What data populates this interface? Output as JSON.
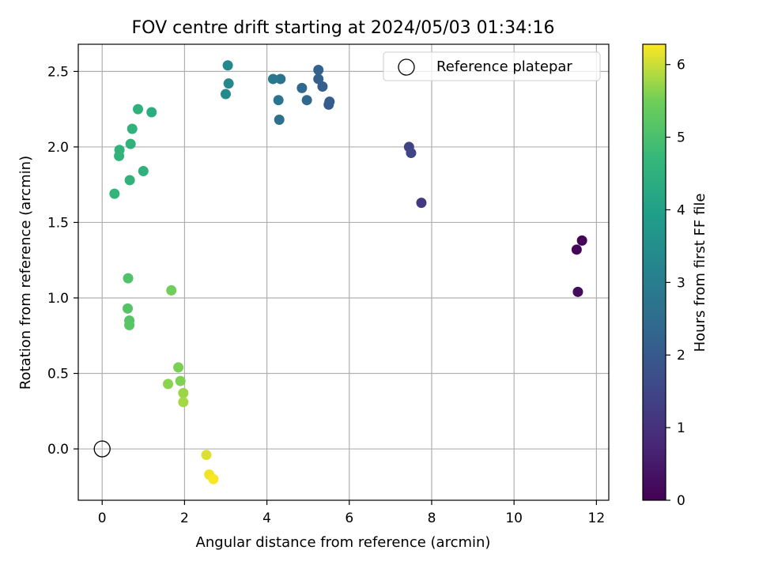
{
  "chart_data": {
    "type": "scatter",
    "title": "FOV centre drift starting at 2024/05/03 01:34:16",
    "xlabel": "Angular distance from reference (arcmin)",
    "ylabel": "Rotation from reference (arcmin)",
    "xlim": [
      -0.58,
      12.3
    ],
    "ylim": [
      -0.34,
      2.68
    ],
    "xticks": [
      0,
      2,
      4,
      6,
      8,
      10,
      12
    ],
    "yticks": [
      0.0,
      0.5,
      1.0,
      1.5,
      2.0,
      2.5
    ],
    "xtick_labels": [
      "0",
      "2",
      "4",
      "6",
      "8",
      "10",
      "12"
    ],
    "ytick_labels": [
      "0.0",
      "0.5",
      "1.0",
      "1.5",
      "2.0",
      "2.5"
    ],
    "grid": true,
    "legend": {
      "position": "top-right",
      "entries": [
        {
          "label": "Reference platepar",
          "marker": "open-circle",
          "color": "#000000"
        }
      ]
    },
    "reference_point": {
      "x": 0,
      "y": 0
    },
    "colorbar": {
      "label": "Hours from first FF file",
      "colormap": "viridis",
      "range": [
        0,
        6.28
      ],
      "ticks": [
        0,
        1,
        2,
        3,
        4,
        5,
        6
      ],
      "tick_labels": [
        "0",
        "1",
        "2",
        "3",
        "4",
        "5",
        "6"
      ]
    },
    "points": [
      {
        "x": 11.55,
        "y": 1.04,
        "c": 0.2
      },
      {
        "x": 11.52,
        "y": 1.32,
        "c": 0.1
      },
      {
        "x": 11.65,
        "y": 1.38,
        "c": 0.05
      },
      {
        "x": 7.75,
        "y": 1.63,
        "c": 1.2
      },
      {
        "x": 7.45,
        "y": 2.0,
        "c": 1.4
      },
      {
        "x": 7.5,
        "y": 1.96,
        "c": 1.5
      },
      {
        "x": 5.5,
        "y": 2.28,
        "c": 2.0
      },
      {
        "x": 5.52,
        "y": 2.3,
        "c": 2.05
      },
      {
        "x": 5.35,
        "y": 2.4,
        "c": 2.1
      },
      {
        "x": 5.25,
        "y": 2.45,
        "c": 2.15
      },
      {
        "x": 5.25,
        "y": 2.51,
        "c": 2.2
      },
      {
        "x": 4.97,
        "y": 2.31,
        "c": 2.35
      },
      {
        "x": 4.85,
        "y": 2.39,
        "c": 2.4
      },
      {
        "x": 4.3,
        "y": 2.18,
        "c": 2.6
      },
      {
        "x": 4.28,
        "y": 2.31,
        "c": 2.75
      },
      {
        "x": 4.33,
        "y": 2.45,
        "c": 2.7
      },
      {
        "x": 4.15,
        "y": 2.45,
        "c": 2.85
      },
      {
        "x": 3.07,
        "y": 2.42,
        "c": 3.3
      },
      {
        "x": 3.05,
        "y": 2.54,
        "c": 3.35
      },
      {
        "x": 3.0,
        "y": 2.35,
        "c": 3.4
      },
      {
        "x": 1.2,
        "y": 2.23,
        "c": 4.4
      },
      {
        "x": 0.87,
        "y": 2.25,
        "c": 4.5
      },
      {
        "x": 0.73,
        "y": 2.12,
        "c": 4.55
      },
      {
        "x": 0.69,
        "y": 2.02,
        "c": 4.55
      },
      {
        "x": 0.42,
        "y": 1.98,
        "c": 4.6
      },
      {
        "x": 0.41,
        "y": 1.94,
        "c": 4.6
      },
      {
        "x": 1.0,
        "y": 1.84,
        "c": 4.5
      },
      {
        "x": 0.67,
        "y": 1.78,
        "c": 4.55
      },
      {
        "x": 0.3,
        "y": 1.69,
        "c": 4.65
      },
      {
        "x": 0.63,
        "y": 1.13,
        "c": 5.1
      },
      {
        "x": 0.62,
        "y": 0.93,
        "c": 5.15
      },
      {
        "x": 0.66,
        "y": 0.85,
        "c": 5.15
      },
      {
        "x": 0.66,
        "y": 0.82,
        "c": 5.2
      },
      {
        "x": 1.68,
        "y": 1.05,
        "c": 5.5
      },
      {
        "x": 1.85,
        "y": 0.54,
        "c": 5.55
      },
      {
        "x": 1.9,
        "y": 0.45,
        "c": 5.6
      },
      {
        "x": 1.6,
        "y": 0.43,
        "c": 5.65
      },
      {
        "x": 1.97,
        "y": 0.37,
        "c": 5.75
      },
      {
        "x": 1.97,
        "y": 0.31,
        "c": 5.8
      },
      {
        "x": 2.53,
        "y": -0.04,
        "c": 6.1
      },
      {
        "x": 2.6,
        "y": -0.17,
        "c": 6.2
      },
      {
        "x": 2.7,
        "y": -0.2,
        "c": 6.25
      }
    ]
  }
}
